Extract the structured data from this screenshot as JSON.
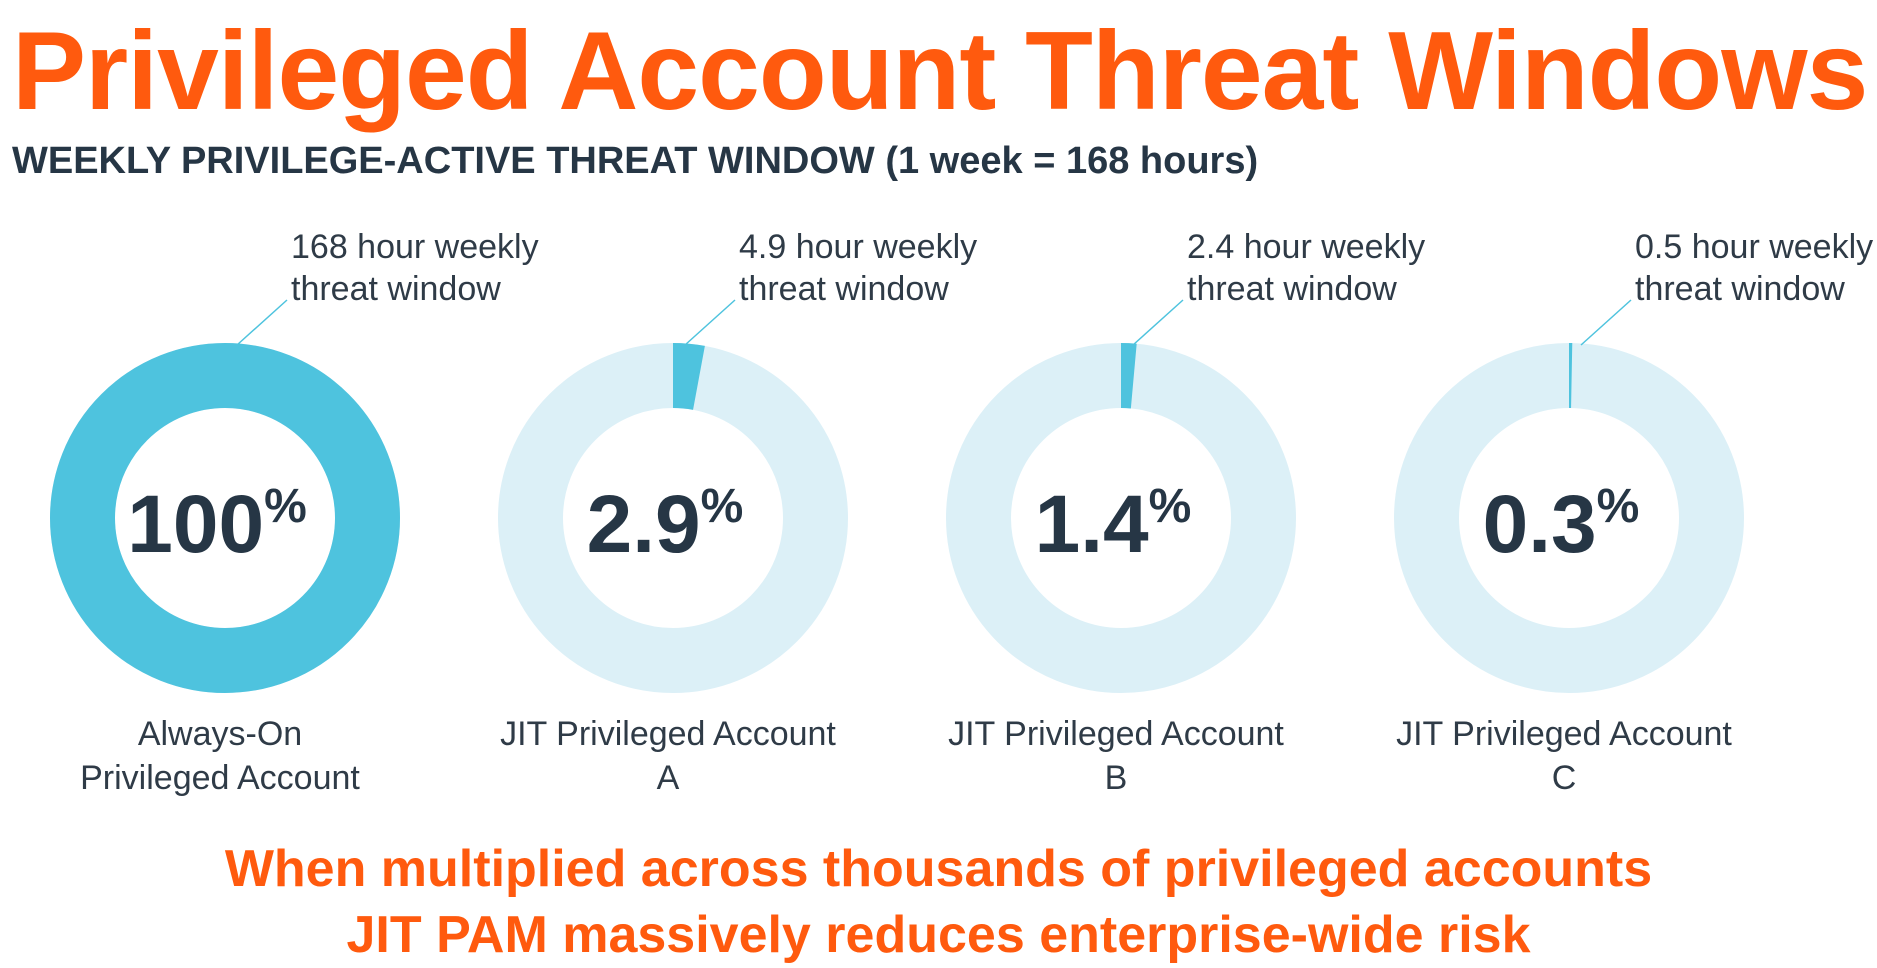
{
  "header": {
    "title": "Privileged Account Threat Windows",
    "subtitle": "WEEKLY PRIVILEGE-ACTIVE THREAT WINDOW (1 week = 168 hours)"
  },
  "footer": {
    "line1": "When multiplied across thousands of privileged accounts",
    "line2": "JIT PAM massively reduces enterprise-wide risk"
  },
  "colors": {
    "accent": "#FF5A0E",
    "ring_filled": "#4EC3DE",
    "ring_track": "#DCF0F7",
    "text_dark": "#263645",
    "text_body": "#2f3b47",
    "leader": "#4EC3DE"
  },
  "chart_data": {
    "type": "pie",
    "total_hours": 168,
    "unit_symbol": "%",
    "donuts": [
      {
        "category_lines": [
          "Always-On",
          "Privileged Account"
        ],
        "hours": 168,
        "percent_label": "100",
        "annotation_lines": [
          "168 hour weekly",
          "threat window"
        ]
      },
      {
        "category_lines": [
          "JIT Privileged Account",
          "A"
        ],
        "hours": 4.9,
        "percent_label": "2.9",
        "annotation_lines": [
          "4.9 hour weekly",
          "threat window"
        ]
      },
      {
        "category_lines": [
          "JIT Privileged Account",
          "B"
        ],
        "hours": 2.4,
        "percent_label": "1.4",
        "annotation_lines": [
          "2.4 hour weekly",
          "threat window"
        ]
      },
      {
        "category_lines": [
          "JIT Privileged Account",
          "C"
        ],
        "hours": 0.5,
        "percent_label": "0.3",
        "annotation_lines": [
          "0.5 hour weekly",
          "threat window"
        ]
      }
    ]
  }
}
